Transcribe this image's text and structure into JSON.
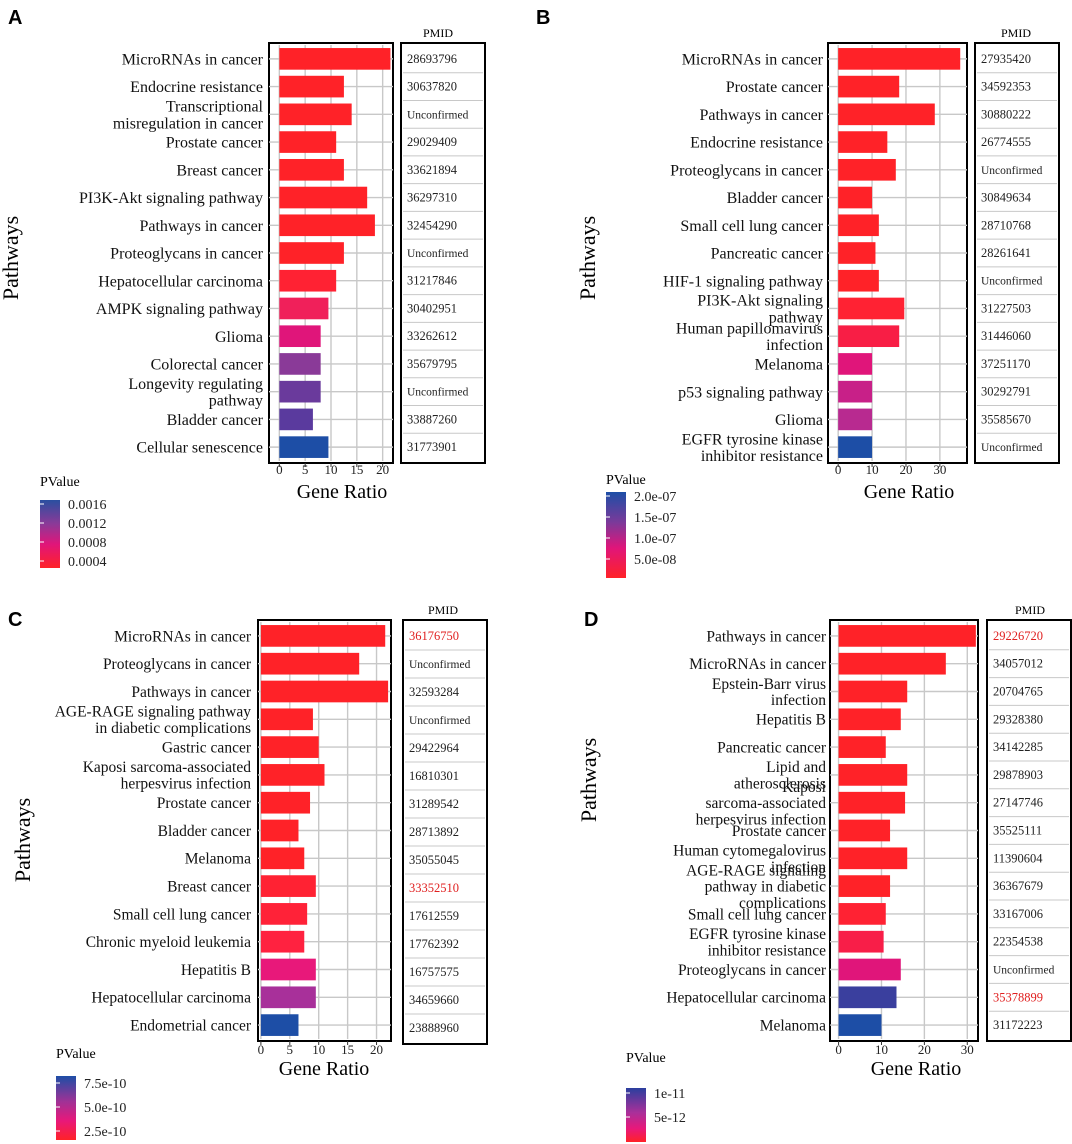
{
  "figure": {
    "x_axis_label": "Gene Ratio",
    "y_axis_label": "Pathways",
    "pmid_header": "PMID",
    "legend_title": "PValue"
  },
  "colors": {
    "low_p": "#ff2228",
    "mid_p": "#e0157a",
    "high_p": "#1d4ea6",
    "highlight_text": "#e02020",
    "grid": "#c8c8c8"
  },
  "chart_data": [
    {
      "panel_label": "A",
      "type": "bar",
      "orientation": "horizontal",
      "xlabel": "Gene Ratio",
      "ylabel": "Pathways",
      "xlim": [
        -2,
        22
      ],
      "xticks": [
        0,
        5,
        10,
        15,
        20
      ],
      "legend": {
        "title": "PValue",
        "labels": [
          "0.0016",
          "0.0012",
          "0.0008",
          "0.0004"
        ]
      },
      "bars": [
        {
          "label": "MicroRNAs in cancer",
          "value": 21.5,
          "color": "#ff2228",
          "pmid": "28693796",
          "highlight": false
        },
        {
          "label": "Endocrine resistance",
          "value": 12.5,
          "color": "#ff2228",
          "pmid": "30637820",
          "highlight": false
        },
        {
          "label": "Transcriptional misregulation in cancer",
          "value": 14,
          "color": "#ff2228",
          "pmid": "Unconfirmed",
          "highlight": false
        },
        {
          "label": "Prostate cancer",
          "value": 11,
          "color": "#ff2228",
          "pmid": "29029409",
          "highlight": false
        },
        {
          "label": "Breast cancer",
          "value": 12.5,
          "color": "#ff2228",
          "pmid": "33621894",
          "highlight": false
        },
        {
          "label": "PI3K-Akt signaling pathway",
          "value": 17,
          "color": "#ff2228",
          "pmid": "36297310",
          "highlight": false
        },
        {
          "label": "Pathways in cancer",
          "value": 18.5,
          "color": "#ff2228",
          "pmid": "32454290",
          "highlight": false
        },
        {
          "label": "Proteoglycans in cancer",
          "value": 12.5,
          "color": "#ff2228",
          "pmid": "Unconfirmed",
          "highlight": false
        },
        {
          "label": "Hepatocellular carcinoma",
          "value": 11,
          "color": "#ff2233",
          "pmid": "31217846",
          "highlight": false
        },
        {
          "label": "AMPK signaling pathway",
          "value": 9.5,
          "color": "#f0205a",
          "pmid": "30402951",
          "highlight": false
        },
        {
          "label": "Glioma",
          "value": 8,
          "color": "#e0157a",
          "pmid": "33262612",
          "highlight": false
        },
        {
          "label": "Colorectal cancer",
          "value": 8,
          "color": "#8a3a98",
          "pmid": "35679795",
          "highlight": false
        },
        {
          "label": "Longevity regulating pathway",
          "value": 8,
          "color": "#6a3a9c",
          "pmid": "Unconfirmed",
          "highlight": false
        },
        {
          "label": "Bladder cancer",
          "value": 6.5,
          "color": "#5a3a9e",
          "pmid": "33887260",
          "highlight": false
        },
        {
          "label": "Cellular senescence",
          "value": 9.5,
          "color": "#1d4ea6",
          "pmid": "31773901",
          "highlight": false
        }
      ]
    },
    {
      "panel_label": "B",
      "type": "bar",
      "orientation": "horizontal",
      "xlabel": "Gene Ratio",
      "ylabel": "Pathways",
      "xlim": [
        -3,
        38
      ],
      "xticks": [
        0,
        10,
        20,
        30
      ],
      "legend": {
        "title": "PValue",
        "labels": [
          "2.0e-07",
          "1.5e-07",
          "1.0e-07",
          "5.0e-08"
        ]
      },
      "bars": [
        {
          "label": "MicroRNAs in cancer",
          "value": 36,
          "color": "#ff2228",
          "pmid": "27935420",
          "highlight": false
        },
        {
          "label": "Prostate cancer",
          "value": 18,
          "color": "#ff2228",
          "pmid": "34592353",
          "highlight": false
        },
        {
          "label": "Pathways in cancer",
          "value": 28.5,
          "color": "#ff2228",
          "pmid": "30880222",
          "highlight": false
        },
        {
          "label": "Endocrine resistance",
          "value": 14.5,
          "color": "#ff2228",
          "pmid": "26774555",
          "highlight": false
        },
        {
          "label": "Proteoglycans in cancer",
          "value": 17,
          "color": "#ff2228",
          "pmid": "Unconfirmed",
          "highlight": false
        },
        {
          "label": "Bladder cancer",
          "value": 10,
          "color": "#ff2228",
          "pmid": "30849634",
          "highlight": false
        },
        {
          "label": "Small cell lung cancer",
          "value": 12,
          "color": "#ff2228",
          "pmid": "28710768",
          "highlight": false
        },
        {
          "label": "Pancreatic cancer",
          "value": 11,
          "color": "#ff2228",
          "pmid": "28261641",
          "highlight": false
        },
        {
          "label": "HIF-1 signaling pathway",
          "value": 12,
          "color": "#ff2228",
          "pmid": "Unconfirmed",
          "highlight": false
        },
        {
          "label": "PI3K-Akt signaling pathway",
          "value": 19.5,
          "color": "#ff2233",
          "pmid": "31227503",
          "highlight": false
        },
        {
          "label": "Human papillomavirus infection",
          "value": 18,
          "color": "#f81e45",
          "pmid": "31446060",
          "highlight": false
        },
        {
          "label": "Melanoma",
          "value": 10,
          "color": "#e0157a",
          "pmid": "37251170",
          "highlight": false
        },
        {
          "label": "p53 signaling pathway",
          "value": 10,
          "color": "#c82088",
          "pmid": "30292791",
          "highlight": false
        },
        {
          "label": "Glioma",
          "value": 10,
          "color": "#b82a90",
          "pmid": "35585670",
          "highlight": false
        },
        {
          "label": "EGFR tyrosine kinase inhibitor resistance",
          "value": 10,
          "color": "#1d4ea6",
          "pmid": "Unconfirmed",
          "highlight": false
        }
      ]
    },
    {
      "panel_label": "C",
      "type": "bar",
      "orientation": "horizontal",
      "xlabel": "Gene Ratio",
      "ylabel": "Pathways",
      "xlim": [
        -0.5,
        22.5
      ],
      "xticks": [
        0,
        5,
        10,
        15,
        20
      ],
      "legend": {
        "title": "PValue",
        "labels": [
          "7.5e-10",
          "5.0e-10",
          "2.5e-10"
        ]
      },
      "bars": [
        {
          "label": "MicroRNAs in cancer",
          "value": 21.5,
          "color": "#ff2228",
          "pmid": "36176750",
          "highlight": true
        },
        {
          "label": "Proteoglycans in cancer",
          "value": 17,
          "color": "#ff2228",
          "pmid": "Unconfirmed",
          "highlight": false
        },
        {
          "label": "Pathways in cancer",
          "value": 22,
          "color": "#ff2228",
          "pmid": "32593284",
          "highlight": false
        },
        {
          "label": "AGE-RAGE signaling pathway in diabetic complications",
          "value": 9,
          "color": "#ff2228",
          "pmid": "Unconfirmed",
          "highlight": false
        },
        {
          "label": "Gastric cancer",
          "value": 10,
          "color": "#ff2228",
          "pmid": "29422964",
          "highlight": false
        },
        {
          "label": "Kaposi sarcoma-associated herpesvirus infection",
          "value": 11,
          "color": "#ff2228",
          "pmid": "16810301",
          "highlight": false
        },
        {
          "label": "Prostate cancer",
          "value": 8.5,
          "color": "#ff2228",
          "pmid": "31289542",
          "highlight": false
        },
        {
          "label": "Bladder cancer",
          "value": 6.5,
          "color": "#ff2228",
          "pmid": "28713892",
          "highlight": false
        },
        {
          "label": "Melanoma",
          "value": 7.5,
          "color": "#ff2228",
          "pmid": "35055045",
          "highlight": false
        },
        {
          "label": "Breast cancer",
          "value": 9.5,
          "color": "#ff2233",
          "pmid": "33352510",
          "highlight": true
        },
        {
          "label": "Small cell lung cancer",
          "value": 8,
          "color": "#ff2238",
          "pmid": "17612559",
          "highlight": false
        },
        {
          "label": "Chronic myeloid leukemia",
          "value": 7.5,
          "color": "#ff2240",
          "pmid": "17762392",
          "highlight": false
        },
        {
          "label": "Hepatitis B",
          "value": 9.5,
          "color": "#e8187a",
          "pmid": "16757575",
          "highlight": false
        },
        {
          "label": "Hepatocellular carcinoma",
          "value": 9.5,
          "color": "#a8309a",
          "pmid": "34659660",
          "highlight": false
        },
        {
          "label": "Endometrial cancer",
          "value": 6.5,
          "color": "#1d4ea6",
          "pmid": "23888960",
          "highlight": false
        }
      ]
    },
    {
      "panel_label": "D",
      "type": "bar",
      "orientation": "horizontal",
      "xlabel": "Gene Ratio",
      "ylabel": "Pathways",
      "xlim": [
        -2,
        32.5
      ],
      "xticks": [
        0,
        10,
        20,
        30
      ],
      "legend": {
        "title": "PValue",
        "labels": [
          "1e-11",
          "5e-12"
        ]
      },
      "bars": [
        {
          "label": "Pathways in cancer",
          "value": 32,
          "color": "#ff2228",
          "pmid": "29226720",
          "highlight": true
        },
        {
          "label": "MicroRNAs in cancer",
          "value": 25,
          "color": "#ff2228",
          "pmid": "34057012",
          "highlight": false
        },
        {
          "label": "Epstein-Barr virus infection",
          "value": 16,
          "color": "#ff2228",
          "pmid": "20704765",
          "highlight": false
        },
        {
          "label": "Hepatitis B",
          "value": 14.5,
          "color": "#ff2228",
          "pmid": "29328380",
          "highlight": false
        },
        {
          "label": "Pancreatic cancer",
          "value": 11,
          "color": "#ff2228",
          "pmid": "34142285",
          "highlight": false
        },
        {
          "label": "Lipid and atherosclerosis",
          "value": 16,
          "color": "#ff2228",
          "pmid": "29878903",
          "highlight": false
        },
        {
          "label": "Kaposi sarcoma-associated herpesvirus infection",
          "value": 15.5,
          "color": "#ff2228",
          "pmid": "27147746",
          "highlight": false
        },
        {
          "label": "Prostate cancer",
          "value": 12,
          "color": "#ff2228",
          "pmid": "35525111",
          "highlight": false
        },
        {
          "label": "Human cytomegalovirus infection",
          "value": 16,
          "color": "#ff2228",
          "pmid": "11390604",
          "highlight": false
        },
        {
          "label": "AGE-RAGE signaling pathway in diabetic complications",
          "value": 12,
          "color": "#ff2228",
          "pmid": "36367679",
          "highlight": false
        },
        {
          "label": "Small cell lung cancer",
          "value": 11,
          "color": "#ff2233",
          "pmid": "33167006",
          "highlight": false
        },
        {
          "label": "EGFR tyrosine kinase inhibitor resistance",
          "value": 10.5,
          "color": "#f81e48",
          "pmid": "22354538",
          "highlight": false
        },
        {
          "label": "Proteoglycans in cancer",
          "value": 14.5,
          "color": "#e0157a",
          "pmid": "Unconfirmed",
          "highlight": false
        },
        {
          "label": "Hepatocellular carcinoma",
          "value": 13.5,
          "color": "#3a3f9e",
          "pmid": "35378899",
          "highlight": true
        },
        {
          "label": "Melanoma",
          "value": 10,
          "color": "#1d4ea6",
          "pmid": "31172223",
          "highlight": false
        }
      ]
    }
  ]
}
